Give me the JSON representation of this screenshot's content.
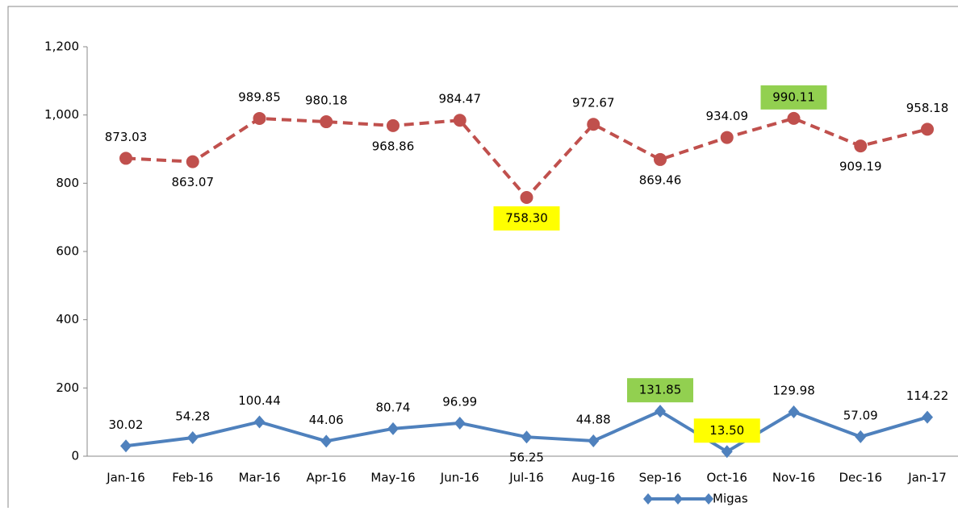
{
  "chart_data": {
    "type": "line",
    "categories": [
      "Jan-16",
      "Feb-16",
      "Mar-16",
      "Apr-16",
      "May-16",
      "Jun-16",
      "Jul-16",
      "Aug-16",
      "Sep-16",
      "Oct-16",
      "Nov-16",
      "Dec-16",
      "Jan-17"
    ],
    "series": [
      {
        "name": "Migas",
        "color": "#4f81bd",
        "marker": "diamond",
        "dashed": false,
        "values": [
          30.02,
          54.28,
          100.44,
          44.06,
          80.74,
          96.99,
          56.25,
          44.88,
          131.85,
          13.5,
          129.98,
          57.09,
          114.22
        ],
        "value_labels": [
          "30.02",
          "54.28",
          "100.44",
          "44.06",
          "80.74",
          "96.99",
          "56.25",
          "44.88",
          "131.85",
          "13.50",
          "129.98",
          "57.09",
          "114.22"
        ]
      },
      {
        "color": "#c0504d",
        "marker": "circle",
        "dashed": true,
        "values": [
          873.03,
          863.07,
          989.85,
          980.18,
          968.86,
          984.47,
          758.3,
          972.67,
          869.46,
          934.09,
          990.11,
          909.19,
          958.18
        ],
        "value_labels": [
          "873.03",
          "863.07",
          "989.85",
          "980.18",
          "968.86",
          "984.47",
          "758.30",
          "972.67",
          "869.46",
          "934.09",
          "990.11",
          "909.19",
          "958.18"
        ]
      }
    ],
    "ylim": [
      0,
      1200
    ],
    "yticks": [
      0,
      200,
      400,
      600,
      800,
      {
        "value": 1000,
        "label": "1,000"
      },
      {
        "value": 1200,
        "label": "1,200"
      }
    ],
    "grid": false,
    "legend": "bottom",
    "min_label_color": "#ffff00",
    "max_label_color": "#92d050"
  }
}
